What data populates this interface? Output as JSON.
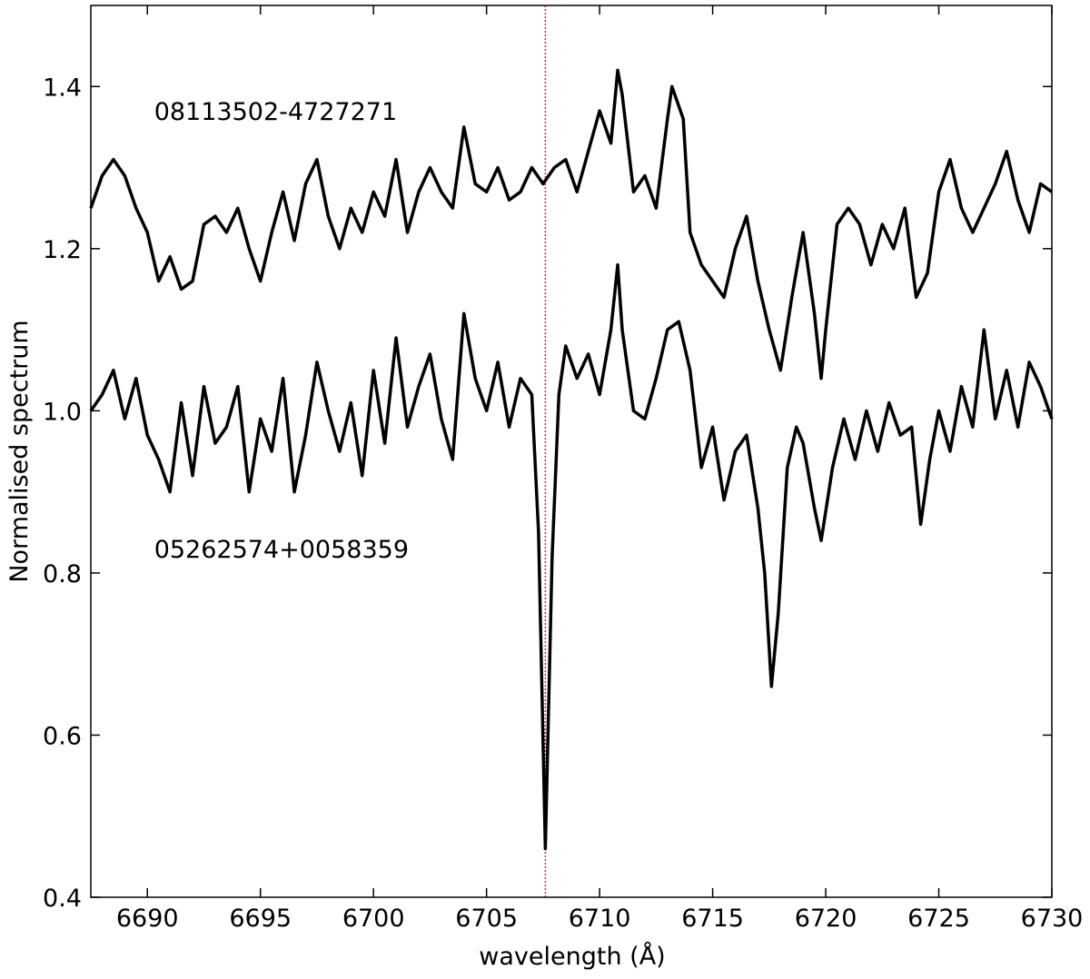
{
  "chart_data": {
    "type": "line",
    "xlabel": "wavelength (Å)",
    "ylabel": "Normalised spectrum",
    "xlim": [
      6687.5,
      6730
    ],
    "ylim": [
      0.4,
      1.5
    ],
    "xticks": [
      6690,
      6695,
      6700,
      6705,
      6710,
      6715,
      6720,
      6725,
      6730
    ],
    "yticks": [
      0.4,
      0.6,
      0.8,
      {
        "value": 1,
        "label": "1.0"
      },
      1.2,
      1.4
    ],
    "grid": false,
    "reference_line": {
      "x": 6707.6,
      "color": "#d62728"
    },
    "annotations": [
      {
        "text": "08113502-4727271",
        "x": 6690.3,
        "y": 1.37
      },
      {
        "text": "05262574+0058359",
        "x": 6690.3,
        "y": 0.83
      }
    ],
    "series": [
      {
        "name": "08113502-4727271",
        "color": "#000000",
        "x": [
          6687.5,
          6688,
          6688.5,
          6689,
          6689.5,
          6690,
          6690.5,
          6691,
          6691.5,
          6692,
          6692.5,
          6693,
          6693.5,
          6694,
          6694.5,
          6695,
          6695.5,
          6696,
          6696.5,
          6697,
          6697.5,
          6698,
          6698.5,
          6699,
          6699.5,
          6700,
          6700.5,
          6701,
          6701.5,
          6702,
          6702.5,
          6703,
          6703.5,
          6704,
          6704.5,
          6705,
          6705.5,
          6706,
          6706.5,
          6707,
          6707.5,
          6708,
          6708.5,
          6709,
          6709.5,
          6710,
          6710.5,
          6710.8,
          6711,
          6711.5,
          6712,
          6712.5,
          6713,
          6713.2,
          6713.7,
          6714,
          6714.5,
          6715,
          6715.5,
          6716,
          6716.5,
          6717,
          6717.5,
          6718,
          6718.5,
          6719,
          6719.5,
          6719.8,
          6720,
          6720.5,
          6721,
          6721.5,
          6722,
          6722.5,
          6723,
          6723.5,
          6724,
          6724.5,
          6725,
          6725.5,
          6726,
          6726.5,
          6727,
          6727.5,
          6728,
          6728.5,
          6729,
          6729.5,
          6730
        ],
        "values": [
          1.25,
          1.29,
          1.31,
          1.29,
          1.25,
          1.22,
          1.16,
          1.19,
          1.15,
          1.16,
          1.23,
          1.24,
          1.22,
          1.25,
          1.2,
          1.16,
          1.22,
          1.27,
          1.21,
          1.28,
          1.31,
          1.24,
          1.2,
          1.25,
          1.22,
          1.27,
          1.24,
          1.31,
          1.22,
          1.27,
          1.3,
          1.27,
          1.25,
          1.35,
          1.28,
          1.27,
          1.3,
          1.26,
          1.27,
          1.3,
          1.28,
          1.3,
          1.31,
          1.27,
          1.32,
          1.37,
          1.33,
          1.42,
          1.39,
          1.27,
          1.29,
          1.25,
          1.36,
          1.4,
          1.36,
          1.22,
          1.18,
          1.16,
          1.14,
          1.2,
          1.24,
          1.16,
          1.1,
          1.05,
          1.14,
          1.22,
          1.12,
          1.04,
          1.1,
          1.23,
          1.25,
          1.23,
          1.18,
          1.23,
          1.2,
          1.25,
          1.14,
          1.17,
          1.27,
          1.31,
          1.25,
          1.22,
          1.25,
          1.28,
          1.32,
          1.26,
          1.22,
          1.28,
          1.27
        ]
      },
      {
        "name": "05262574+0058359",
        "color": "#000000",
        "x": [
          6687.5,
          6688,
          6688.5,
          6689,
          6689.5,
          6690,
          6690.5,
          6691,
          6691.5,
          6692,
          6692.5,
          6693,
          6693.5,
          6694,
          6694.5,
          6695,
          6695.5,
          6696,
          6696.5,
          6697,
          6697.5,
          6698,
          6698.5,
          6699,
          6699.5,
          6700,
          6700.5,
          6701,
          6701.5,
          6702,
          6702.5,
          6703,
          6703.5,
          6704,
          6704.5,
          6705,
          6705.5,
          6706,
          6706.5,
          6707,
          6707.3,
          6707.6,
          6707.9,
          6708.2,
          6708.5,
          6709,
          6709.5,
          6710,
          6710.5,
          6710.8,
          6711,
          6711.5,
          6712,
          6712.5,
          6713,
          6713.5,
          6714,
          6714.5,
          6715,
          6715.5,
          6716,
          6716.5,
          6717,
          6717.3,
          6717.6,
          6717.9,
          6718.3,
          6718.7,
          6719,
          6719.5,
          6719.8,
          6720.3,
          6720.8,
          6721.3,
          6721.8,
          6722.3,
          6722.8,
          6723.3,
          6723.8,
          6724.2,
          6724.6,
          6725,
          6725.5,
          6726,
          6726.5,
          6727,
          6727.5,
          6728,
          6728.5,
          6729,
          6729.5,
          6730
        ],
        "values": [
          1.0,
          1.02,
          1.05,
          0.99,
          1.04,
          0.97,
          0.94,
          0.9,
          1.01,
          0.92,
          1.03,
          0.96,
          0.98,
          1.03,
          0.9,
          0.99,
          0.95,
          1.04,
          0.9,
          0.97,
          1.06,
          1.0,
          0.95,
          1.01,
          0.92,
          1.05,
          0.96,
          1.09,
          0.98,
          1.03,
          1.07,
          0.99,
          0.94,
          1.12,
          1.04,
          1.0,
          1.06,
          0.98,
          1.04,
          1.02,
          0.85,
          0.46,
          0.82,
          1.02,
          1.08,
          1.04,
          1.07,
          1.02,
          1.1,
          1.18,
          1.1,
          1.0,
          0.99,
          1.04,
          1.1,
          1.11,
          1.05,
          0.93,
          0.98,
          0.89,
          0.95,
          0.97,
          0.88,
          0.8,
          0.66,
          0.75,
          0.93,
          0.98,
          0.96,
          0.88,
          0.84,
          0.93,
          0.99,
          0.94,
          1.0,
          0.95,
          1.01,
          0.97,
          0.98,
          0.86,
          0.94,
          1.0,
          0.95,
          1.03,
          0.98,
          1.1,
          0.99,
          1.05,
          0.98,
          1.06,
          1.03,
          0.99
        ]
      }
    ]
  }
}
